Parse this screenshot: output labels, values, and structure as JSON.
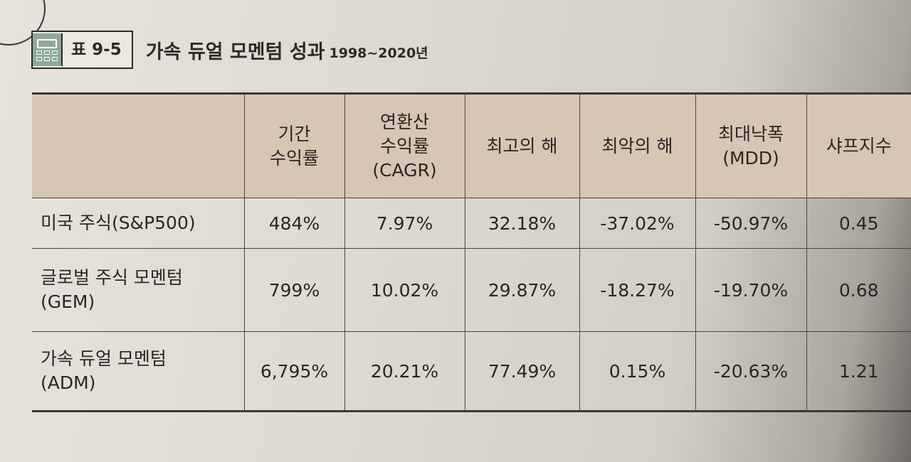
{
  "header": {
    "label": "표 9-5",
    "title": "가속 듀얼 모멘텀 성과",
    "subtitle": "1998~2020년"
  },
  "table": {
    "columns": [
      "",
      "기간\n수익률",
      "연환산\n수익률\n(CAGR)",
      "최고의 해",
      "최악의 해",
      "최대낙폭\n(MDD)",
      "샤프지수"
    ],
    "rows": [
      {
        "label": "미국 주식(S&P500)",
        "cells": [
          "484%",
          "7.97%",
          "32.18%",
          "-37.02%",
          "-50.97%",
          "0.45"
        ]
      },
      {
        "label": "글로벌 주식 모멘텀\n(GEM)",
        "cells": [
          "799%",
          "10.02%",
          "29.87%",
          "-18.27%",
          "-19.70%",
          "0.68"
        ]
      },
      {
        "label": "가속 듀얼 모멘텀\n(ADM)",
        "cells": [
          "6,795%",
          "20.21%",
          "77.49%",
          "0.15%",
          "-20.63%",
          "1.21"
        ]
      }
    ]
  },
  "icons": {
    "header_icon": "calculator-icon"
  },
  "colors": {
    "header_fill": "#d6c6b6",
    "icon_fill": "#8fa89a"
  }
}
